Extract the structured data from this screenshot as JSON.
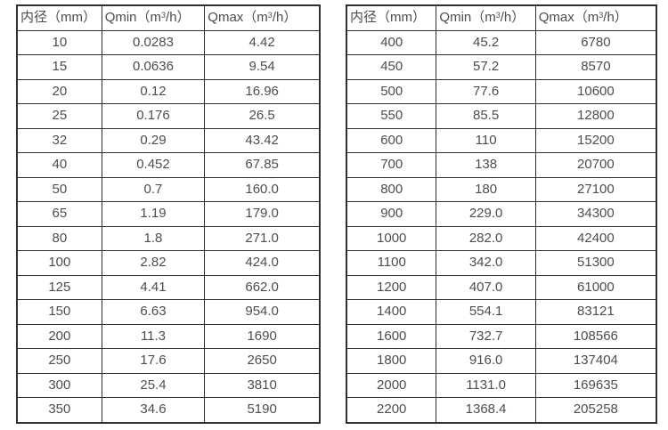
{
  "page": {
    "description_colors": {
      "border": "#2f2f2f",
      "text": "#4d4d4d",
      "background": "#ffffff"
    }
  },
  "tables": [
    {
      "header": {
        "diameter": "内径（mm）",
        "qmin": {
          "pre": "Qmin（m",
          "sup": "3",
          "post": "/h）"
        },
        "qmax": {
          "pre": "Qmax（m",
          "sup": "3",
          "post": "/h）"
        }
      },
      "rows": [
        [
          "10",
          "0.0283",
          "4.42"
        ],
        [
          "15",
          "0.0636",
          "9.54"
        ],
        [
          "20",
          "0.12",
          "16.96"
        ],
        [
          "25",
          "0.176",
          "26.5"
        ],
        [
          "32",
          "0.29",
          "43.42"
        ],
        [
          "40",
          "0.452",
          "67.85"
        ],
        [
          "50",
          "0.7",
          "160.0"
        ],
        [
          "65",
          "1.19",
          "179.0"
        ],
        [
          "80",
          "1.8",
          "271.0"
        ],
        [
          "100",
          "2.82",
          "424.0"
        ],
        [
          "125",
          "4.41",
          "662.0"
        ],
        [
          "150",
          "6.63",
          "954.0"
        ],
        [
          "200",
          "11.3",
          "1690"
        ],
        [
          "250",
          "17.6",
          "2650"
        ],
        [
          "300",
          "25.4",
          "3810"
        ],
        [
          "350",
          "34.6",
          "5190"
        ]
      ]
    },
    {
      "header": {
        "diameter": "内径（mm）",
        "qmin": {
          "pre": "Qmin（m",
          "sup": "3",
          "post": "/h）"
        },
        "qmax": {
          "pre": "Qmax（m",
          "sup": "3",
          "post": "/h）"
        }
      },
      "rows": [
        [
          "400",
          "45.2",
          "6780"
        ],
        [
          "450",
          "57.2",
          "8570"
        ],
        [
          "500",
          "77.6",
          "10600"
        ],
        [
          "550",
          "85.5",
          "12800"
        ],
        [
          "600",
          "110",
          "15200"
        ],
        [
          "700",
          "138",
          "20700"
        ],
        [
          "800",
          "180",
          "27100"
        ],
        [
          "900",
          "229.0",
          "34300"
        ],
        [
          "1000",
          "282.0",
          "42400"
        ],
        [
          "1100",
          "342.0",
          "51300"
        ],
        [
          "1200",
          "407.0",
          "61000"
        ],
        [
          "1400",
          "554.1",
          "83121"
        ],
        [
          "1600",
          "732.7",
          "108566"
        ],
        [
          "1800",
          "916.0",
          "137404"
        ],
        [
          "2000",
          "1131.0",
          "169635"
        ],
        [
          "2200",
          "1368.4",
          "205258"
        ]
      ]
    }
  ]
}
